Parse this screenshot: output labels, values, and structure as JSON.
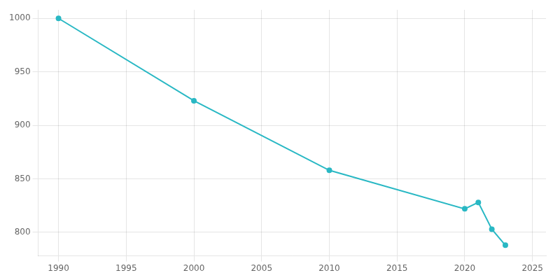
{
  "chart_data": {
    "type": "line",
    "x": [
      1990,
      2000,
      2010,
      2020,
      2021,
      2022,
      2023
    ],
    "values": [
      1000,
      923,
      858,
      822,
      828,
      803,
      788
    ],
    "color": "#29b8c4",
    "marker": "circle",
    "xlim": [
      1988.5,
      2026
    ],
    "xticks": [
      1990,
      1995,
      2000,
      2005,
      2010,
      2015,
      2020,
      2025
    ],
    "ylim": [
      778,
      1008
    ],
    "yticks": [
      800,
      850,
      900,
      950,
      1000
    ],
    "grid": true
  }
}
